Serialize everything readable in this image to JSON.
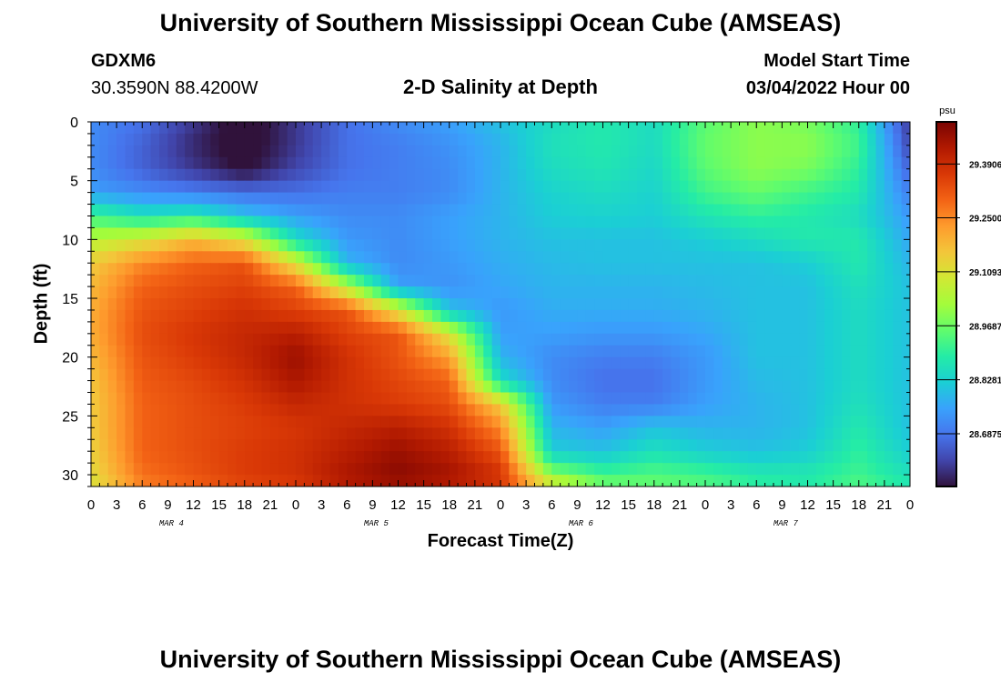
{
  "page": {
    "title": "University of Southern Mississippi Ocean Cube (AMSEAS)",
    "station_id": "GDXM6",
    "station_coords": "30.3590N  88.4200W",
    "plot_title": "2-D Salinity at Depth",
    "model_start_label": "Model Start Time",
    "model_start_value": "03/04/2022 Hour 00",
    "footer_title": "University of Southern Mississippi Ocean Cube (AMSEAS)"
  },
  "colors": {
    "colormap": [
      "#30123b",
      "#4145ab",
      "#4675ed",
      "#39a2fc",
      "#1bcfd4",
      "#24eca6",
      "#61fc6c",
      "#a4fc3b",
      "#d1e834",
      "#f3c63a",
      "#fe9b2d",
      "#f36315",
      "#d93806",
      "#b11901",
      "#7a0402"
    ]
  },
  "chart_data": {
    "type": "heatmap",
    "title": "2-D Salinity at Depth",
    "xlabel": "Forecast Time(Z)",
    "ylabel": "Depth (ft)",
    "x_tick_labels": [
      "0",
      "3",
      "6",
      "9",
      "12",
      "15",
      "18",
      "21",
      "0",
      "3",
      "6",
      "9",
      "12",
      "15",
      "18",
      "21",
      "0",
      "3",
      "6",
      "9",
      "12",
      "15",
      "18",
      "21",
      "0",
      "3",
      "6",
      "9",
      "12",
      "15",
      "18",
      "21",
      "0"
    ],
    "day_labels": [
      {
        "label": "MAR 4",
        "hour": 9
      },
      {
        "label": "MAR 5",
        "hour": 33
      },
      {
        "label": "MAR 6",
        "hour": 57
      },
      {
        "label": "MAR 7",
        "hour": 81
      }
    ],
    "xlim": [
      0,
      96
    ],
    "ylim": [
      0,
      31
    ],
    "y_ticks": [
      0,
      5,
      10,
      15,
      20,
      25,
      30
    ],
    "colorbar": {
      "unit": "psu",
      "range": [
        28.55,
        29.5
      ],
      "tick_values": [
        29.39,
        29.25,
        29.1093,
        28.9687,
        28.8281,
        28.6875
      ],
      "tick_labels": [
        "29.3906",
        "29.2500",
        "29.1093",
        "28.9687",
        "28.8281",
        "28.6875"
      ]
    },
    "salinity_psu": {
      "depths_ft": [
        0,
        2,
        4,
        6,
        8,
        10,
        12,
        14,
        16,
        18,
        20,
        22,
        24,
        26,
        28,
        30,
        31
      ],
      "hours": [
        0,
        6,
        12,
        18,
        24,
        30,
        36,
        42,
        48,
        54,
        60,
        66,
        72,
        78,
        84,
        90,
        96
      ],
      "values": [
        [
          28.72,
          28.68,
          28.6,
          28.52,
          28.6,
          28.68,
          28.72,
          28.75,
          28.8,
          28.85,
          28.88,
          28.85,
          28.95,
          29.0,
          28.98,
          28.9,
          28.6
        ],
        [
          28.72,
          28.66,
          28.58,
          28.52,
          28.6,
          28.68,
          28.7,
          28.73,
          28.78,
          28.86,
          28.88,
          28.85,
          28.96,
          29.0,
          29.0,
          28.92,
          28.62
        ],
        [
          28.72,
          28.66,
          28.6,
          28.54,
          28.62,
          28.68,
          28.7,
          28.72,
          28.78,
          28.85,
          28.87,
          28.84,
          28.95,
          29.0,
          28.98,
          28.9,
          28.66
        ],
        [
          28.75,
          28.72,
          28.7,
          28.68,
          28.68,
          28.7,
          28.7,
          28.72,
          28.78,
          28.83,
          28.85,
          28.83,
          28.92,
          28.96,
          28.92,
          28.88,
          28.7
        ],
        [
          28.92,
          28.86,
          28.88,
          28.8,
          28.75,
          28.72,
          28.72,
          28.75,
          28.78,
          28.82,
          28.83,
          28.82,
          28.87,
          28.9,
          28.88,
          28.85,
          28.74
        ],
        [
          29.05,
          29.1,
          29.18,
          29.1,
          28.85,
          28.74,
          28.72,
          28.75,
          28.78,
          28.8,
          28.8,
          28.8,
          28.82,
          28.85,
          28.88,
          28.88,
          28.76
        ],
        [
          29.15,
          29.25,
          29.3,
          29.32,
          29.1,
          28.78,
          28.72,
          28.74,
          28.77,
          28.79,
          28.8,
          28.8,
          28.8,
          28.8,
          28.82,
          28.88,
          28.78
        ],
        [
          29.18,
          29.3,
          29.33,
          29.35,
          29.3,
          29.05,
          28.75,
          28.73,
          28.76,
          28.78,
          28.78,
          28.78,
          28.79,
          28.8,
          28.8,
          28.86,
          28.8
        ],
        [
          29.2,
          29.32,
          29.35,
          29.38,
          29.35,
          29.32,
          29.1,
          28.8,
          28.74,
          28.77,
          28.77,
          28.77,
          28.78,
          28.8,
          28.8,
          28.85,
          28.8
        ],
        [
          29.2,
          29.33,
          29.37,
          29.4,
          29.42,
          29.35,
          29.32,
          29.1,
          28.75,
          28.75,
          28.74,
          28.74,
          28.76,
          28.8,
          28.8,
          28.85,
          28.8
        ],
        [
          29.18,
          29.32,
          29.36,
          29.4,
          29.46,
          29.38,
          29.32,
          29.22,
          28.78,
          28.72,
          28.7,
          28.7,
          28.74,
          28.8,
          28.8,
          28.85,
          28.8
        ],
        [
          29.16,
          29.31,
          29.34,
          29.38,
          29.44,
          29.38,
          29.34,
          29.3,
          28.85,
          28.72,
          28.68,
          28.68,
          28.74,
          28.79,
          28.8,
          28.85,
          28.8
        ],
        [
          29.15,
          29.3,
          29.33,
          29.36,
          29.4,
          29.38,
          29.36,
          29.33,
          29.15,
          28.74,
          28.7,
          28.7,
          28.75,
          28.78,
          28.8,
          28.86,
          28.8
        ],
        [
          29.15,
          29.3,
          29.33,
          29.35,
          29.37,
          29.4,
          29.42,
          29.38,
          29.25,
          28.78,
          28.75,
          28.8,
          28.78,
          28.78,
          28.8,
          28.88,
          28.8
        ],
        [
          29.14,
          29.3,
          29.33,
          29.36,
          29.38,
          29.42,
          29.46,
          29.42,
          29.32,
          28.82,
          28.8,
          28.86,
          28.82,
          28.8,
          28.82,
          28.9,
          28.82
        ],
        [
          29.12,
          29.28,
          29.32,
          29.36,
          29.38,
          29.44,
          29.48,
          29.45,
          29.38,
          29.0,
          28.92,
          28.94,
          28.92,
          28.88,
          28.88,
          28.92,
          28.86
        ],
        [
          29.1,
          29.26,
          29.3,
          29.34,
          29.36,
          29.42,
          29.45,
          29.42,
          29.36,
          29.12,
          28.98,
          28.96,
          28.94,
          28.9,
          28.88,
          28.94,
          28.88
        ]
      ]
    }
  }
}
